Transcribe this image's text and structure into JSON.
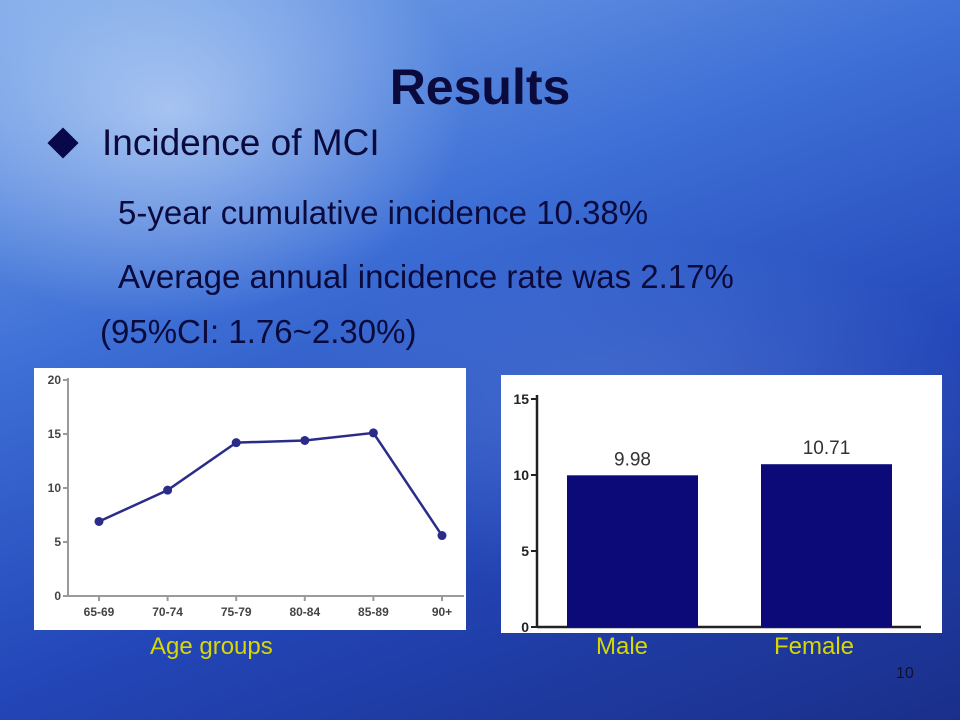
{
  "slide": {
    "title": "Results",
    "bullet": "Incidence of MCI",
    "line1": "5-year cumulative incidence 10.38%",
    "line2": "Average annual incidence rate was 2.17%",
    "line3": "(95%CI: 1.76~2.30%)",
    "age_caption": "Age groups",
    "male_caption": "Male",
    "female_caption": "Female",
    "page_number": "10"
  },
  "chart_data": [
    {
      "type": "line",
      "categories": [
        "65-69",
        "70-74",
        "75-79",
        "80-84",
        "85-89",
        "90+"
      ],
      "values": [
        6.9,
        9.8,
        14.2,
        14.4,
        15.1,
        5.6
      ],
      "ylim": [
        0,
        20
      ],
      "yticks": [
        0,
        5,
        10,
        15,
        20
      ],
      "grid": false,
      "color": "#2b2c8a"
    },
    {
      "type": "bar",
      "categories": [
        "Male",
        "Female"
      ],
      "values": [
        9.98,
        10.71
      ],
      "data_labels": [
        "9.98",
        "10.71"
      ],
      "ylim": [
        0,
        15
      ],
      "yticks": [
        0,
        5,
        10,
        15
      ],
      "grid": false,
      "color": "#0b0a78"
    }
  ]
}
